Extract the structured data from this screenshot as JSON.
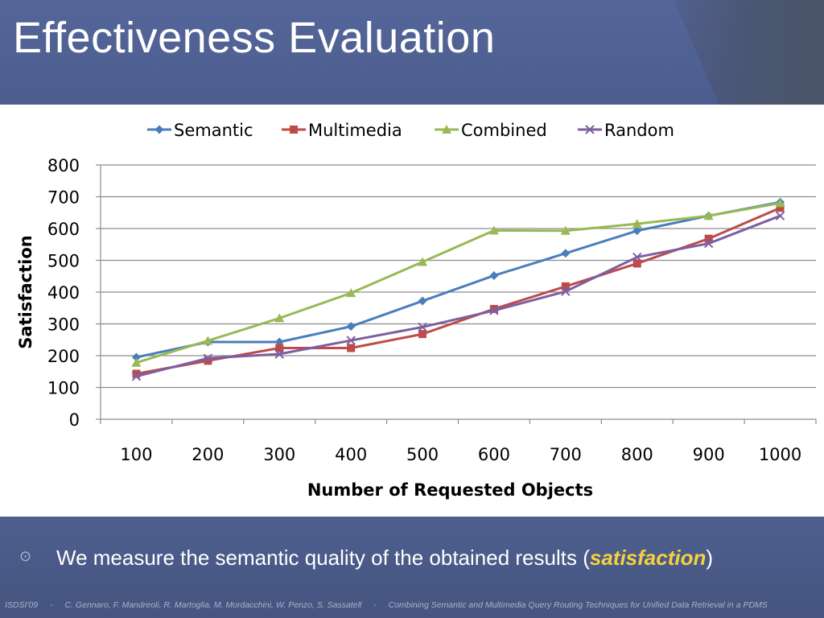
{
  "slide": {
    "title": "Effectiveness Evaluation",
    "bullet_text_before": "We measure the semantic quality of the obtained results (",
    "bullet_text_emph": "satisfaction",
    "bullet_text_after": ")",
    "bullet_icon": "circle-dot-icon",
    "footer": {
      "venue": "ISDSI'09",
      "authors": "C. Gennaro, F. Mandreoli, R. Martoglia, M. Mordacchini, W. Penzo, S. Sassatell",
      "paper_title": "Combining Semantic and Multimedia Query Routing Techniques for Unified Data Retrieval in a PDMS",
      "separator": "-"
    }
  },
  "chart_data": {
    "type": "line",
    "title": "",
    "xlabel": "Number of Requested Objects",
    "ylabel": "Satisfaction",
    "categories": [
      "100",
      "200",
      "300",
      "400",
      "500",
      "600",
      "700",
      "800",
      "900",
      "1000"
    ],
    "ylim": [
      0,
      800
    ],
    "yticks": [
      0,
      100,
      200,
      300,
      400,
      500,
      600,
      700,
      800
    ],
    "grid": true,
    "legend_position": "top",
    "series": [
      {
        "name": "Semantic",
        "color": "#4a7ebb",
        "marker": "diamond",
        "values": [
          195,
          243,
          243,
          292,
          372,
          452,
          522,
          593,
          640,
          683
        ]
      },
      {
        "name": "Multimedia",
        "color": "#be4b48",
        "marker": "square",
        "values": [
          143,
          184,
          224,
          224,
          268,
          347,
          418,
          490,
          568,
          665
        ]
      },
      {
        "name": "Combined",
        "color": "#98b954",
        "marker": "triangle",
        "values": [
          178,
          247,
          318,
          397,
          495,
          594,
          593,
          615,
          640,
          680
        ]
      },
      {
        "name": "Random",
        "color": "#7d5fa0",
        "marker": "x",
        "values": [
          135,
          192,
          205,
          248,
          290,
          342,
          402,
          510,
          553,
          640
        ]
      }
    ]
  }
}
